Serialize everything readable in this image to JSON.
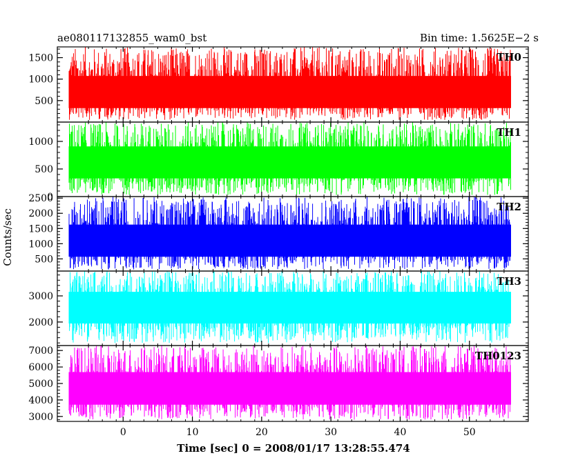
{
  "header": {
    "title": "ae080117132855_wam0_bst",
    "bin_time": "Bin time: 1.5625E−2 s"
  },
  "chart_data": {
    "type": "line",
    "ylabel": "Counts/sec",
    "xlabel": "Time [sec] 0 = 2008/01/17 13:28:55.474",
    "xlim": [
      -9.5,
      58.5
    ],
    "x_ticks": [
      0,
      10,
      20,
      30,
      40,
      50
    ],
    "x_range_data": [
      -7.8,
      56.0
    ],
    "grid": false,
    "panels": [
      {
        "name": "TH0",
        "color": "#ff0000",
        "ylim": [
          0,
          1750
        ],
        "y_ticks": [
          500,
          1000,
          1500
        ],
        "baseline": 700,
        "low": 50,
        "high": 1750
      },
      {
        "name": "TH1",
        "color": "#00ff00",
        "ylim": [
          0,
          1350
        ],
        "y_ticks": [
          0,
          500,
          1000
        ],
        "baseline": 620,
        "low": 30,
        "high": 1350
      },
      {
        "name": "TH2",
        "color": "#0000ff",
        "ylim": [
          100,
          2550
        ],
        "y_ticks": [
          500,
          1000,
          1500,
          2000,
          2500
        ],
        "baseline": 1100,
        "low": 150,
        "high": 2550
      },
      {
        "name": "TH3",
        "color": "#00ffff",
        "ylim": [
          1100,
          3950
        ],
        "y_ticks": [
          2000,
          3000
        ],
        "baseline": 2550,
        "low": 1200,
        "high": 3950
      },
      {
        "name": "TH0123",
        "color": "#ff00ff",
        "ylim": [
          2700,
          7300
        ],
        "y_ticks": [
          3000,
          4000,
          5000,
          6000,
          7000
        ],
        "baseline": 4700,
        "low": 2800,
        "high": 7300
      }
    ]
  }
}
